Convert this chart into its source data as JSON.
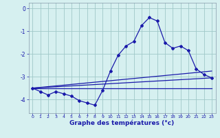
{
  "xlabel": "Graphe des températures (°c)",
  "background_color": "#d6f0f0",
  "grid_color": "#a0c8c8",
  "line_color": "#1a1aaa",
  "spine_color": "#8899aa",
  "xlim": [
    -0.5,
    23.5
  ],
  "ylim": [
    -4.6,
    0.25
  ],
  "yticks": [
    0,
    -1,
    -2,
    -3,
    -4
  ],
  "xticks": [
    0,
    1,
    2,
    3,
    4,
    5,
    6,
    7,
    8,
    9,
    10,
    11,
    12,
    13,
    14,
    15,
    16,
    17,
    18,
    19,
    20,
    21,
    22,
    23
  ],
  "curve1_x": [
    0,
    1,
    2,
    3,
    4,
    5,
    6,
    7,
    8,
    9,
    10,
    11,
    12,
    13,
    14,
    15,
    16,
    17,
    18,
    19,
    20,
    21,
    22,
    23
  ],
  "curve1_y": [
    -3.5,
    -3.65,
    -3.8,
    -3.65,
    -3.75,
    -3.85,
    -4.05,
    -4.15,
    -4.25,
    -3.6,
    -2.75,
    -2.05,
    -1.65,
    -1.45,
    -0.75,
    -0.4,
    -0.55,
    -1.5,
    -1.75,
    -1.65,
    -1.85,
    -2.65,
    -2.9,
    -3.05
  ],
  "line1_x": [
    0,
    23
  ],
  "line1_y": [
    -3.5,
    -3.05
  ],
  "line2_x": [
    0,
    23
  ],
  "line2_y": [
    -3.5,
    -2.75
  ],
  "line3_x": [
    0,
    23
  ],
  "line3_y": [
    -3.5,
    -3.5
  ]
}
